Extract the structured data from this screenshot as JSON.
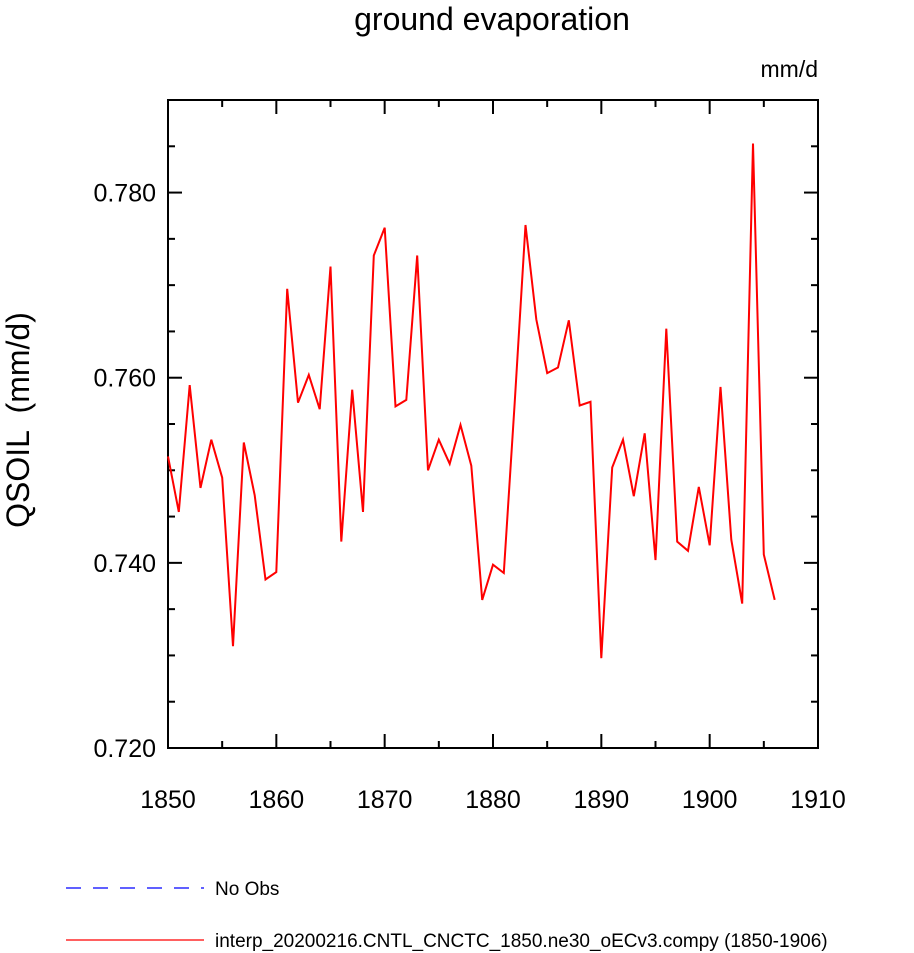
{
  "chart_data": {
    "type": "line",
    "title": "ground evaporation",
    "units": "mm/d",
    "ylabel": "QSOIL  (mm/d)",
    "xlim": [
      1850,
      1910
    ],
    "ylim": [
      0.72,
      0.79
    ],
    "x_ticks": [
      "1850",
      "1860",
      "1870",
      "1880",
      "1890",
      "1900",
      "1910"
    ],
    "y_ticks": [
      "0.720",
      "0.740",
      "0.760",
      "0.780"
    ],
    "legend": {
      "placement": "bottom",
      "entries": [
        {
          "label": "No Obs",
          "color": "#0000ff",
          "style": "dashed"
        },
        {
          "label": "interp_20200216.CNTL_CNCTC_1850.ne30_oECv3.compy (1850-1906)",
          "color": "#ff0000",
          "style": "solid"
        }
      ]
    },
    "series": [
      {
        "name": "interp_20200216.CNTL_CNCTC_1850.ne30_oECv3.compy (1850-1906)",
        "color": "#ff0000",
        "x": [
          1850,
          1851,
          1852,
          1853,
          1854,
          1855,
          1856,
          1857,
          1858,
          1859,
          1860,
          1861,
          1862,
          1863,
          1864,
          1865,
          1866,
          1867,
          1868,
          1869,
          1870,
          1871,
          1872,
          1873,
          1874,
          1875,
          1876,
          1877,
          1878,
          1879,
          1880,
          1881,
          1882,
          1883,
          1884,
          1885,
          1886,
          1887,
          1888,
          1889,
          1890,
          1891,
          1892,
          1893,
          1894,
          1895,
          1896,
          1897,
          1898,
          1899,
          1900,
          1901,
          1902,
          1903,
          1904,
          1905,
          1906
        ],
        "values": [
          0.7515,
          0.7455,
          0.7592,
          0.7481,
          0.7533,
          0.7492,
          0.731,
          0.753,
          0.7473,
          0.7382,
          0.739,
          0.7696,
          0.7573,
          0.7603,
          0.7566,
          0.772,
          0.7423,
          0.7587,
          0.7455,
          0.7732,
          0.7762,
          0.7569,
          0.7576,
          0.7732,
          0.75,
          0.7533,
          0.7507,
          0.7549,
          0.7505,
          0.736,
          0.7398,
          0.7389,
          0.7573,
          0.7765,
          0.7663,
          0.7605,
          0.7611,
          0.7662,
          0.757,
          0.7574,
          0.7297,
          0.7503,
          0.7533,
          0.7472,
          0.754,
          0.7403,
          0.7653,
          0.7423,
          0.7413,
          0.7482,
          0.7419,
          0.759,
          0.7425,
          0.7356,
          0.7853,
          0.7409,
          0.736
        ]
      }
    ]
  }
}
